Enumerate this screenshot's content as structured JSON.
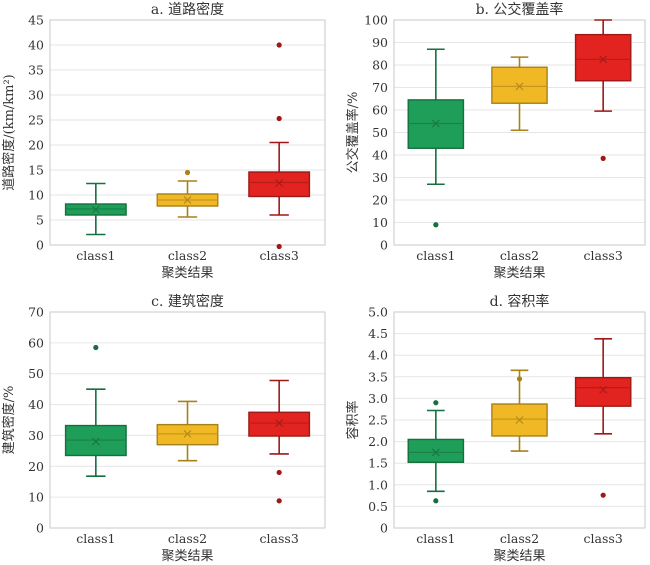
{
  "chart_data": [
    {
      "type": "box",
      "title": "a. 道路密度",
      "xlabel": "聚类结果",
      "ylabel": "道路密度/(km/km²)",
      "ylim": [
        0,
        45
      ],
      "yticks": [
        "0",
        "5",
        "10",
        "15",
        "20",
        "25",
        "30",
        "35",
        "40",
        "45"
      ],
      "categories": [
        "class1",
        "class2",
        "class3"
      ],
      "colors": [
        "#1e9e58",
        "#f0b824",
        "#e2231f"
      ],
      "boxes": [
        {
          "min": 2.1,
          "q1": 6.0,
          "median": 7.2,
          "mean": 7.1,
          "q3": 8.2,
          "max": 12.3,
          "outliers": []
        },
        {
          "min": 5.6,
          "q1": 7.8,
          "median": 9.0,
          "mean": 9.0,
          "q3": 10.2,
          "max": 12.8,
          "outliers": [
            14.5
          ]
        },
        {
          "min": 6.0,
          "q1": 9.7,
          "median": 12.5,
          "mean": 12.4,
          "q3": 14.6,
          "max": 20.5,
          "outliers": [
            25.3,
            40.0,
            -0.3
          ]
        }
      ]
    },
    {
      "type": "box",
      "title": "b. 公交覆盖率",
      "xlabel": "聚类结果",
      "ylabel": "公交覆盖率/%",
      "ylim": [
        0,
        100
      ],
      "yticks": [
        "0",
        "10",
        "20",
        "30",
        "40",
        "50",
        "60",
        "70",
        "80",
        "90",
        "100"
      ],
      "categories": [
        "class1",
        "class2",
        "class3"
      ],
      "colors": [
        "#1e9e58",
        "#f0b824",
        "#e2231f"
      ],
      "boxes": [
        {
          "min": 27.0,
          "q1": 43.0,
          "median": 54.0,
          "mean": 54.0,
          "q3": 64.5,
          "max": 87.0,
          "outliers": [
            9.0
          ]
        },
        {
          "min": 51.0,
          "q1": 63.0,
          "median": 70.5,
          "mean": 70.5,
          "q3": 79.0,
          "max": 83.5,
          "outliers": []
        },
        {
          "min": 59.5,
          "q1": 73.0,
          "median": 82.5,
          "mean": 82.5,
          "q3": 93.5,
          "max": 100.0,
          "outliers": [
            38.5
          ]
        }
      ]
    },
    {
      "type": "box",
      "title": "c. 建筑密度",
      "xlabel": "聚类结果",
      "ylabel": "建筑密度/%",
      "ylim": [
        0,
        70
      ],
      "yticks": [
        "0",
        "10",
        "20",
        "30",
        "40",
        "50",
        "60",
        "70"
      ],
      "categories": [
        "class1",
        "class2",
        "class3"
      ],
      "colors": [
        "#1e9e58",
        "#f0b824",
        "#e2231f"
      ],
      "boxes": [
        {
          "min": 16.8,
          "q1": 23.5,
          "median": 28.5,
          "mean": 28.0,
          "q3": 33.2,
          "max": 45.0,
          "outliers": [
            58.5
          ]
        },
        {
          "min": 21.8,
          "q1": 27.0,
          "median": 30.5,
          "mean": 30.5,
          "q3": 33.5,
          "max": 41.0,
          "outliers": []
        },
        {
          "min": 24.0,
          "q1": 29.8,
          "median": 34.0,
          "mean": 34.0,
          "q3": 37.5,
          "max": 47.8,
          "outliers": [
            18.0,
            8.8
          ]
        }
      ]
    },
    {
      "type": "box",
      "title": "d. 容积率",
      "xlabel": "聚类结果",
      "ylabel": "容积率",
      "ylim": [
        0,
        5
      ],
      "yticks": [
        "0",
        "0.5",
        "1.0",
        "1.5",
        "2.0",
        "2.5",
        "3.0",
        "3.5",
        "4.0",
        "4.5",
        "5.0"
      ],
      "categories": [
        "class1",
        "class2",
        "class3"
      ],
      "colors": [
        "#1e9e58",
        "#f0b824",
        "#e2231f"
      ],
      "boxes": [
        {
          "min": 0.85,
          "q1": 1.52,
          "median": 1.75,
          "mean": 1.75,
          "q3": 2.05,
          "max": 2.72,
          "outliers": [
            2.9,
            0.63
          ]
        },
        {
          "min": 1.78,
          "q1": 2.13,
          "median": 2.52,
          "mean": 2.5,
          "q3": 2.87,
          "max": 3.65,
          "outliers": [
            3.45
          ]
        },
        {
          "min": 2.18,
          "q1": 2.82,
          "median": 3.25,
          "mean": 3.2,
          "q3": 3.48,
          "max": 4.38,
          "outliers": [
            0.76
          ]
        }
      ]
    }
  ]
}
